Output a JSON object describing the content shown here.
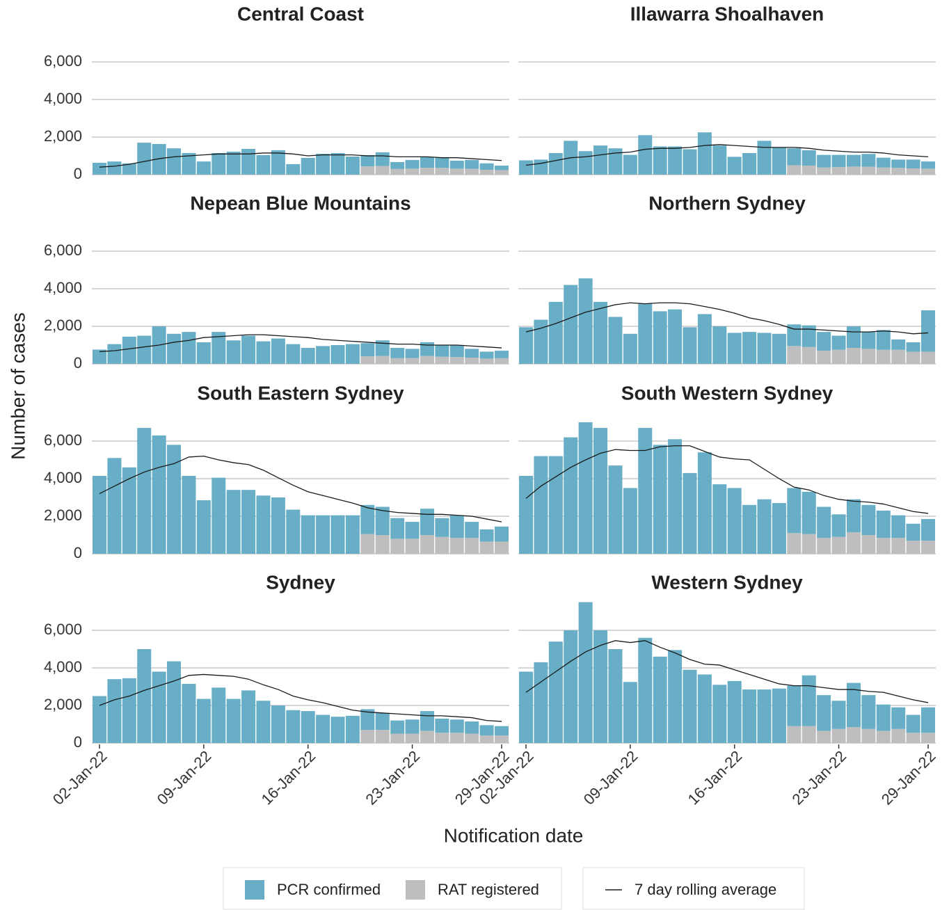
{
  "chart_data": {
    "type": "bar",
    "stacked": true,
    "x_label": "Notification date",
    "y_label": "Number of cases",
    "legend_position": "bottom",
    "grid": true,
    "categories": [
      "02-Jan-22",
      null,
      null,
      null,
      null,
      null,
      null,
      "09-Jan-22",
      null,
      null,
      null,
      null,
      null,
      null,
      "16-Jan-22",
      null,
      null,
      null,
      null,
      null,
      null,
      "23-Jan-22",
      null,
      null,
      null,
      null,
      null,
      "29-Jan-22"
    ],
    "ylim": [
      0,
      7600
    ],
    "yticks": [
      0,
      {
        "value": 2000,
        "label": "2,000"
      },
      {
        "value": 4000,
        "label": "4,000"
      },
      {
        "value": 6000,
        "label": "6,000"
      }
    ],
    "series": [
      {
        "name": "PCR confirmed",
        "color": "#67aec6"
      },
      {
        "name": "RAT registered",
        "color": "#bebebe"
      },
      {
        "name": "7 day rolling average",
        "color": "#1a1a1a",
        "type": "line"
      }
    ],
    "panels": [
      {
        "title": "Central Coast",
        "pcr": [
          630,
          700,
          600,
          1700,
          1630,
          1400,
          1150,
          700,
          1150,
          1220,
          1370,
          1040,
          1300,
          560,
          890,
          1110,
          1150,
          960,
          600,
          730,
          370,
          460,
          560,
          530,
          420,
          470,
          340,
          240
        ],
        "rat": [
          null,
          null,
          null,
          null,
          null,
          null,
          null,
          null,
          null,
          null,
          null,
          null,
          null,
          null,
          null,
          null,
          null,
          null,
          440,
          460,
          300,
          320,
          370,
          360,
          320,
          310,
          260,
          240
        ],
        "avg": [
          400,
          450,
          550,
          700,
          850,
          950,
          1000,
          1050,
          1100,
          1100,
          1100,
          1150,
          1150,
          1100,
          1000,
          1050,
          1050,
          1050,
          1000,
          1000,
          950,
          950,
          950,
          900,
          900,
          850,
          800,
          750
        ]
      },
      {
        "title": "Illawarra Shoalhaven",
        "pcr": [
          760,
          800,
          1150,
          1800,
          1250,
          1550,
          1400,
          1050,
          2100,
          1500,
          1500,
          1350,
          2250,
          1550,
          950,
          1150,
          1800,
          1450,
          900,
          820,
          670,
          650,
          620,
          680,
          520,
          440,
          470,
          380
        ],
        "rat": [
          null,
          null,
          null,
          null,
          null,
          null,
          null,
          null,
          null,
          null,
          null,
          null,
          null,
          null,
          null,
          null,
          null,
          null,
          500,
          480,
          380,
          400,
          430,
          420,
          380,
          360,
          330,
          320
        ],
        "avg": [
          500,
          600,
          750,
          900,
          950,
          1050,
          1150,
          1200,
          1350,
          1400,
          1400,
          1450,
          1550,
          1600,
          1550,
          1500,
          1450,
          1450,
          1450,
          1400,
          1300,
          1250,
          1200,
          1200,
          1150,
          1050,
          1000,
          950
        ]
      },
      {
        "title": "Nepean Blue Mountains",
        "pcr": [
          760,
          1050,
          1450,
          1500,
          2000,
          1600,
          1700,
          1150,
          1700,
          1250,
          1500,
          1200,
          1350,
          1050,
          850,
          950,
          1000,
          1050,
          700,
          830,
          550,
          490,
          730,
          620,
          640,
          470,
          370,
          400
        ],
        "rat": [
          null,
          null,
          null,
          null,
          null,
          null,
          null,
          null,
          null,
          null,
          null,
          null,
          null,
          null,
          null,
          null,
          null,
          null,
          400,
          420,
          300,
          310,
          420,
          380,
          360,
          330,
          280,
          300
        ],
        "avg": [
          650,
          700,
          800,
          900,
          1000,
          1150,
          1250,
          1400,
          1450,
          1500,
          1550,
          1550,
          1500,
          1450,
          1400,
          1300,
          1250,
          1200,
          1150,
          1100,
          1050,
          1050,
          1000,
          1000,
          1000,
          950,
          900,
          850
        ]
      },
      {
        "title": "Northern Sydney",
        "pcr": [
          1950,
          2350,
          3300,
          4200,
          4550,
          3300,
          2500,
          1600,
          3200,
          2800,
          2900,
          1950,
          2650,
          2000,
          1650,
          1700,
          1650,
          1600,
          1150,
          1150,
          1000,
          750,
          1150,
          900,
          1050,
          550,
          500,
          2200
        ],
        "rat": [
          null,
          null,
          null,
          null,
          null,
          null,
          null,
          null,
          null,
          null,
          null,
          null,
          null,
          null,
          null,
          null,
          null,
          null,
          950,
          900,
          700,
          750,
          850,
          800,
          750,
          750,
          650,
          650
        ],
        "avg": [
          1700,
          1900,
          2150,
          2450,
          2750,
          2950,
          3150,
          3250,
          3200,
          3250,
          3250,
          3200,
          3050,
          2900,
          2700,
          2450,
          2300,
          2100,
          1850,
          1850,
          1800,
          1750,
          1700,
          1700,
          1750,
          1700,
          1600,
          1650
        ]
      },
      {
        "title": "South Eastern Sydney",
        "pcr": [
          4150,
          5100,
          4600,
          6700,
          6300,
          5800,
          4150,
          2850,
          4050,
          3400,
          3400,
          3100,
          3000,
          2350,
          2050,
          2050,
          2050,
          2050,
          1550,
          1500,
          1100,
          900,
          1400,
          1000,
          1200,
          850,
          650,
          800
        ],
        "rat": [
          null,
          null,
          null,
          null,
          null,
          null,
          null,
          null,
          null,
          null,
          null,
          null,
          null,
          null,
          null,
          null,
          null,
          null,
          1050,
          1000,
          800,
          800,
          1000,
          900,
          850,
          850,
          650,
          650
        ],
        "avg": [
          3200,
          3600,
          4000,
          4350,
          4600,
          4800,
          5150,
          5200,
          5000,
          4850,
          4750,
          4450,
          4050,
          3650,
          3300,
          3100,
          2900,
          2700,
          2450,
          2300,
          2200,
          2150,
          2100,
          2100,
          2050,
          2000,
          1850,
          1700
        ]
      },
      {
        "title": "South Western Sydney",
        "pcr": [
          4150,
          5200,
          5200,
          6200,
          7000,
          6700,
          4700,
          3500,
          6700,
          5800,
          6100,
          4300,
          5400,
          3700,
          3500,
          2600,
          2900,
          2700,
          2400,
          2250,
          1650,
          1200,
          1750,
          1600,
          1450,
          1200,
          900,
          1150
        ],
        "rat": [
          null,
          null,
          null,
          null,
          null,
          null,
          null,
          null,
          null,
          null,
          null,
          null,
          null,
          null,
          null,
          null,
          null,
          null,
          1100,
          1050,
          850,
          900,
          1150,
          1000,
          850,
          850,
          700,
          700
        ],
        "avg": [
          2950,
          3600,
          4100,
          4600,
          5000,
          5350,
          5550,
          5500,
          5500,
          5700,
          5750,
          5750,
          5450,
          5150,
          5050,
          5000,
          4500,
          4000,
          3550,
          3400,
          3100,
          2900,
          2800,
          2750,
          2650,
          2450,
          2250,
          2150
        ]
      },
      {
        "title": "Sydney",
        "pcr": [
          2500,
          3400,
          3450,
          5000,
          3800,
          4350,
          3150,
          2350,
          2950,
          2350,
          2800,
          2250,
          2000,
          1750,
          1700,
          1500,
          1400,
          1450,
          1100,
          900,
          700,
          750,
          1050,
          750,
          700,
          650,
          550,
          500
        ],
        "rat": [
          null,
          null,
          null,
          null,
          null,
          null,
          null,
          null,
          null,
          null,
          null,
          null,
          null,
          null,
          null,
          null,
          null,
          null,
          700,
          700,
          500,
          500,
          650,
          550,
          550,
          500,
          400,
          400
        ],
        "avg": [
          2000,
          2300,
          2500,
          2800,
          3050,
          3300,
          3600,
          3650,
          3600,
          3550,
          3400,
          3100,
          2850,
          2500,
          2300,
          2150,
          1950,
          1750,
          1650,
          1600,
          1550,
          1500,
          1450,
          1450,
          1400,
          1350,
          1200,
          1150
        ]
      },
      {
        "title": "Western Sydney",
        "pcr": [
          3800,
          4300,
          5400,
          6000,
          7500,
          6000,
          5000,
          3250,
          5600,
          4600,
          4950,
          3900,
          3650,
          3100,
          3300,
          2850,
          2850,
          2900,
          2150,
          2700,
          1900,
          1500,
          2350,
          1800,
          1400,
          1150,
          950,
          1350
        ],
        "rat": [
          null,
          null,
          null,
          null,
          null,
          null,
          null,
          null,
          null,
          null,
          null,
          null,
          null,
          null,
          null,
          null,
          null,
          null,
          900,
          900,
          650,
          750,
          850,
          750,
          650,
          750,
          550,
          550
        ],
        "avg": [
          2700,
          3250,
          3800,
          4350,
          4850,
          5200,
          5450,
          5350,
          5450,
          5100,
          4800,
          4450,
          4200,
          4150,
          3900,
          3650,
          3400,
          3150,
          3050,
          3050,
          2950,
          2850,
          2850,
          2750,
          2700,
          2500,
          2300,
          2150
        ]
      }
    ]
  }
}
